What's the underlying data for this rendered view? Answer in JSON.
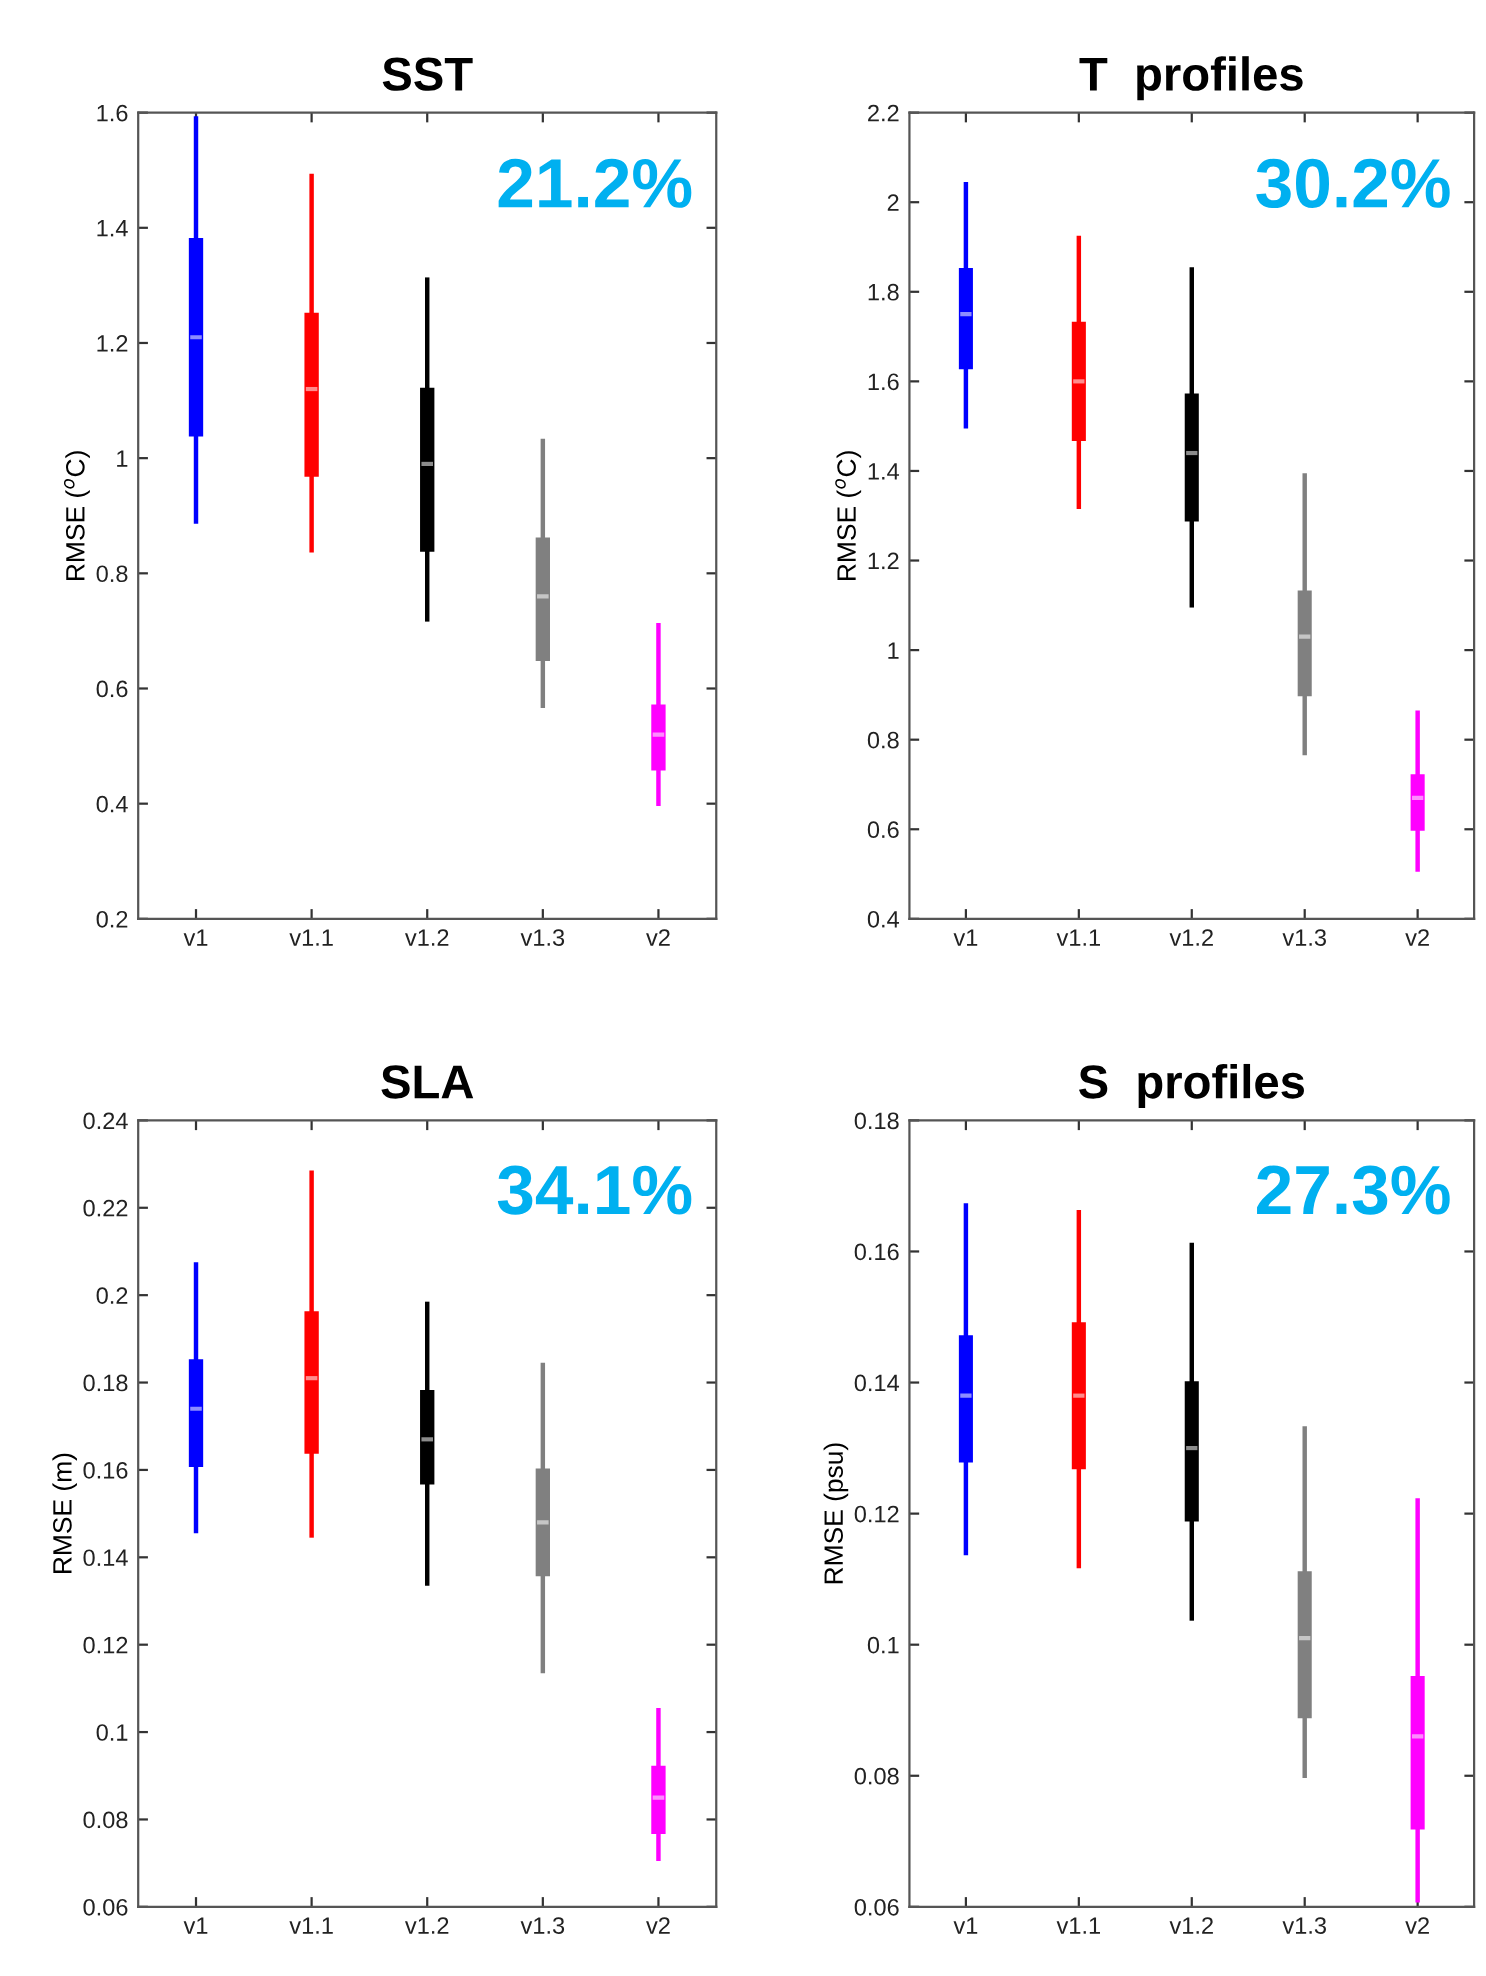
{
  "chart_data": [
    {
      "type": "box",
      "title": "SST",
      "ylabel": "RMSE ($^{o}$C)",
      "categories": [
        "v1",
        "v1.1",
        "v1.2",
        "v1.3",
        "v2"
      ],
      "colors": [
        "#0000ff",
        "#ff0000",
        "#000000",
        "#808080",
        "#ff00ff"
      ],
      "boxes": [
        {
          "low": 0.89,
          "q1": 1.04,
          "median": 1.21,
          "q3": 1.38,
          "high": 1.59
        },
        {
          "low": 0.84,
          "q1": 0.97,
          "median": 1.12,
          "q3": 1.25,
          "high": 1.49
        },
        {
          "low": 0.72,
          "q1": 0.84,
          "median": 0.99,
          "q3": 1.12,
          "high": 1.31
        },
        {
          "low": 0.57,
          "q1": 0.65,
          "median": 0.76,
          "q3": 0.86,
          "high": 1.03
        },
        {
          "low": 0.4,
          "q1": 0.46,
          "median": 0.52,
          "q3": 0.57,
          "high": 0.71
        }
      ],
      "ylim": [
        0.2,
        1.6
      ],
      "yticks": [
        0.2,
        0.4,
        0.6,
        0.8,
        1,
        1.2,
        1.4,
        1.6
      ],
      "annotations": [
        "21.2%"
      ]
    },
    {
      "type": "box",
      "title": "T  profiles",
      "ylabel": "RMSE ($^{o}$C)",
      "categories": [
        "v1",
        "v1.1",
        "v1.2",
        "v1.3",
        "v2"
      ],
      "colors": [
        "#0000ff",
        "#ff0000",
        "#000000",
        "#808080",
        "#ff00ff"
      ],
      "boxes": [
        {
          "low": 1.5,
          "q1": 1.63,
          "median": 1.75,
          "q3": 1.85,
          "high": 2.04
        },
        {
          "low": 1.32,
          "q1": 1.47,
          "median": 1.6,
          "q3": 1.73,
          "high": 1.92
        },
        {
          "low": 1.1,
          "q1": 1.29,
          "median": 1.44,
          "q3": 1.57,
          "high": 1.85
        },
        {
          "low": 0.77,
          "q1": 0.9,
          "median": 1.03,
          "q3": 1.13,
          "high": 1.39
        },
        {
          "low": 0.51,
          "q1": 0.6,
          "median": 0.67,
          "q3": 0.72,
          "high": 0.86
        }
      ],
      "ylim": [
        0.4,
        2.2
      ],
      "yticks": [
        0.4,
        0.6,
        0.8,
        1,
        1.2,
        1.4,
        1.6,
        1.8,
        2,
        2.2
      ],
      "annotations": [
        "30.2%"
      ]
    },
    {
      "type": "box",
      "title": "SLA",
      "ylabel": "RMSE (m)",
      "categories": [
        "v1",
        "v1.1",
        "v1.2",
        "v1.3",
        "v2"
      ],
      "colors": [
        "#0000ff",
        "#ff0000",
        "#000000",
        "#808080",
        "#ff00ff"
      ],
      "boxes": [
        {
          "low": 0.146,
          "q1": 0.161,
          "median": 0.174,
          "q3": 0.185,
          "high": 0.207
        },
        {
          "low": 0.145,
          "q1": 0.164,
          "median": 0.181,
          "q3": 0.196,
          "high": 0.228
        },
        {
          "low": 0.134,
          "q1": 0.157,
          "median": 0.167,
          "q3": 0.178,
          "high": 0.198
        },
        {
          "low": 0.114,
          "q1": 0.136,
          "median": 0.148,
          "q3": 0.16,
          "high": 0.184
        },
        {
          "low": 0.071,
          "q1": 0.077,
          "median": 0.085,
          "q3": 0.092,
          "high": 0.105
        }
      ],
      "ylim": [
        0.06,
        0.24
      ],
      "yticks": [
        0.06,
        0.08,
        0.1,
        0.12,
        0.14,
        0.16,
        0.18,
        0.2,
        0.22,
        0.24
      ],
      "annotations": [
        "34.1%"
      ]
    },
    {
      "type": "box",
      "title": "S  profiles",
      "ylabel": "RMSE (psu)",
      "categories": [
        "v1",
        "v1.1",
        "v1.2",
        "v1.3",
        "v2"
      ],
      "colors": [
        "#0000ff",
        "#ff0000",
        "#000000",
        "#808080",
        "#ff00ff"
      ],
      "boxes": [
        {
          "low": 0.114,
          "q1": 0.128,
          "median": 0.138,
          "q3": 0.147,
          "high": 0.167
        },
        {
          "low": 0.112,
          "q1": 0.127,
          "median": 0.138,
          "q3": 0.149,
          "high": 0.166
        },
        {
          "low": 0.104,
          "q1": 0.119,
          "median": 0.13,
          "q3": 0.14,
          "high": 0.161
        },
        {
          "low": 0.08,
          "q1": 0.089,
          "median": 0.101,
          "q3": 0.111,
          "high": 0.133
        },
        {
          "low": 0.061,
          "q1": 0.072,
          "median": 0.086,
          "q3": 0.095,
          "high": 0.122
        }
      ],
      "ylim": [
        0.06,
        0.18
      ],
      "yticks": [
        0.06,
        0.08,
        0.1,
        0.12,
        0.14,
        0.16,
        0.18
      ],
      "annotations": [
        "27.3%"
      ]
    }
  ]
}
